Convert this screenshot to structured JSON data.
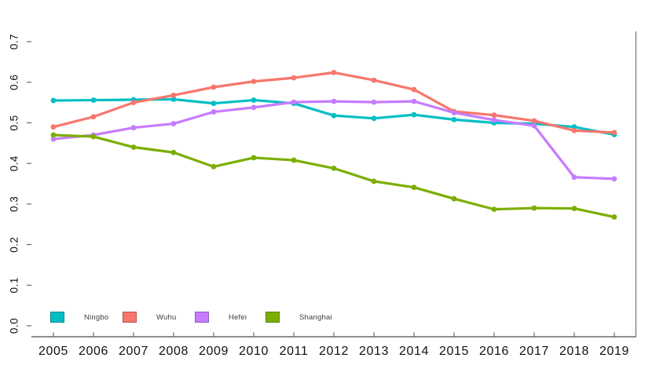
{
  "figure": {
    "background": "#ffffff",
    "axis_line_color": "#4d4d4d",
    "right_border_color": "#808080",
    "tick_label_color": "#111111",
    "legend_text_color": "#3d3d3d"
  },
  "chart_data": {
    "type": "line",
    "title": "",
    "xlabel": "",
    "ylabel": "",
    "x": [
      2005,
      2006,
      2007,
      2008,
      2009,
      2010,
      2011,
      2012,
      2013,
      2014,
      2015,
      2016,
      2017,
      2018,
      2019
    ],
    "ylim": [
      0.0,
      0.7
    ],
    "yticks": [
      "0.0",
      "0.1",
      "0.2",
      "0.3",
      "0.4",
      "0.5",
      "0.6",
      "0.7"
    ],
    "grid": false,
    "legend_position": "bottom-left-inside",
    "marker": "point",
    "series": [
      {
        "name": "Ningbo",
        "color": "#00BFC4",
        "values": [
          0.555,
          0.556,
          0.557,
          0.558,
          0.548,
          0.556,
          0.548,
          0.518,
          0.511,
          0.52,
          0.508,
          0.5,
          0.498,
          0.49,
          0.471
        ]
      },
      {
        "name": "Wuhu",
        "color": "#F8766D",
        "values": [
          0.49,
          0.515,
          0.55,
          0.568,
          0.588,
          0.602,
          0.611,
          0.624,
          0.605,
          0.582,
          0.528,
          0.519,
          0.505,
          0.481,
          0.476
        ]
      },
      {
        "name": "Hefei",
        "color": "#C77CFF",
        "values": [
          0.46,
          0.47,
          0.488,
          0.498,
          0.527,
          0.538,
          0.551,
          0.553,
          0.551,
          0.553,
          0.525,
          0.507,
          0.493,
          0.366,
          0.362
        ]
      },
      {
        "name": "Shanghai",
        "color": "#7CAE00",
        "values": [
          0.47,
          0.466,
          0.44,
          0.427,
          0.392,
          0.414,
          0.408,
          0.388,
          0.356,
          0.341,
          0.313,
          0.287,
          0.29,
          0.289,
          0.268
        ]
      }
    ]
  }
}
